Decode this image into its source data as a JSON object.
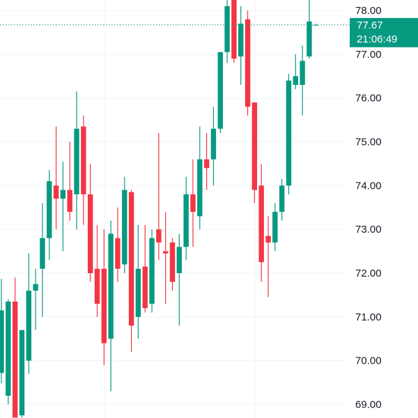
{
  "chart_data": {
    "type": "candlestick",
    "categories": [
      null,
      null,
      null,
      null,
      null,
      null,
      null,
      null,
      null,
      null,
      null,
      null,
      null,
      null,
      null,
      null,
      null,
      null,
      null,
      null,
      null,
      null,
      null,
      null,
      null,
      null,
      null,
      null,
      null,
      null,
      null,
      null,
      null,
      null,
      null,
      null,
      null,
      null,
      null,
      null,
      null,
      null,
      null,
      null,
      null,
      null,
      null
    ],
    "open": [
      69.72,
      69.2,
      71.35,
      68.75,
      70.0,
      71.6,
      72.1,
      72.8,
      74.0,
      73.7,
      73.9,
      73.8,
      75.35,
      73.8,
      72.1,
      72.1,
      70.5,
      72.8,
      72.2,
      73.85,
      71.0,
      72.15,
      71.3,
      73.0,
      72.5,
      72.7,
      72.0,
      72.6,
      73.8,
      73.3,
      74.6,
      74.6,
      75.3,
      77.05,
      78.24,
      76.95,
      77.8,
      75.9,
      74.0,
      72.85,
      72.7,
      73.4,
      74.0,
      76.3,
      76.3,
      76.95,
      77.67
    ],
    "high": [
      71.87,
      71.4,
      71.9,
      70.7,
      72.45,
      72.1,
      73.6,
      74.35,
      75.35,
      74.55,
      75.0,
      76.15,
      75.6,
      74.5,
      73.1,
      73.0,
      73.2,
      73.5,
      74.2,
      73.9,
      73.1,
      73.1,
      73.0,
      75.2,
      73.4,
      72.8,
      72.9,
      74.2,
      74.6,
      75.35,
      75.2,
      75.8,
      77.05,
      78.24,
      78.24,
      78.1,
      78.0,
      75.9,
      74.5,
      73.3,
      73.6,
      74.15,
      76.55,
      77.0,
      77.2,
      78.24,
      77.7
    ],
    "low": [
      69.48,
      69.0,
      68.7,
      68.7,
      69.7,
      70.7,
      71.0,
      72.3,
      73.0,
      72.5,
      73.2,
      73.0,
      73.1,
      71.8,
      71.0,
      69.9,
      69.3,
      71.8,
      72.0,
      70.2,
      70.5,
      71.1,
      71.1,
      72.3,
      71.3,
      71.6,
      70.8,
      72.3,
      72.6,
      73.0,
      73.9,
      74.0,
      75.2,
      76.8,
      76.8,
      76.3,
      75.6,
      73.6,
      71.8,
      71.45,
      72.5,
      73.2,
      73.8,
      76.2,
      75.6,
      76.9,
      77.67
    ],
    "close": [
      71.15,
      71.35,
      68.7,
      70.7,
      71.6,
      71.75,
      72.8,
      74.1,
      73.7,
      73.9,
      73.4,
      75.3,
      73.8,
      72.0,
      71.3,
      70.4,
      72.9,
      72.1,
      73.9,
      70.8,
      72.1,
      71.2,
      72.8,
      72.7,
      72.45,
      71.8,
      72.6,
      73.8,
      73.4,
      74.6,
      74.4,
      75.3,
      77.05,
      78.1,
      76.9,
      77.7,
      75.8,
      73.9,
      72.25,
      72.7,
      73.4,
      74.0,
      76.4,
      76.5,
      76.85,
      77.75,
      77.67
    ],
    "up_color": "#089981",
    "down_color": "#f23645",
    "ylim": [
      68.69,
      78.24
    ],
    "yticks": [
      {
        "value": 78,
        "label": "78.00"
      },
      {
        "value": 77,
        "label": "77.00"
      },
      {
        "value": 76,
        "label": "76.00"
      },
      {
        "value": 75,
        "label": "75.00"
      },
      {
        "value": 74,
        "label": "74.00"
      },
      {
        "value": 73,
        "label": "73.00"
      },
      {
        "value": 72,
        "label": "72.00"
      },
      {
        "value": 71,
        "label": "71.00"
      },
      {
        "value": 70,
        "label": "70.00"
      },
      {
        "value": 69,
        "label": "69.00"
      }
    ],
    "grid": true,
    "last_price": {
      "value": 77.67,
      "label": "77.67",
      "time": "21:06:49"
    }
  }
}
